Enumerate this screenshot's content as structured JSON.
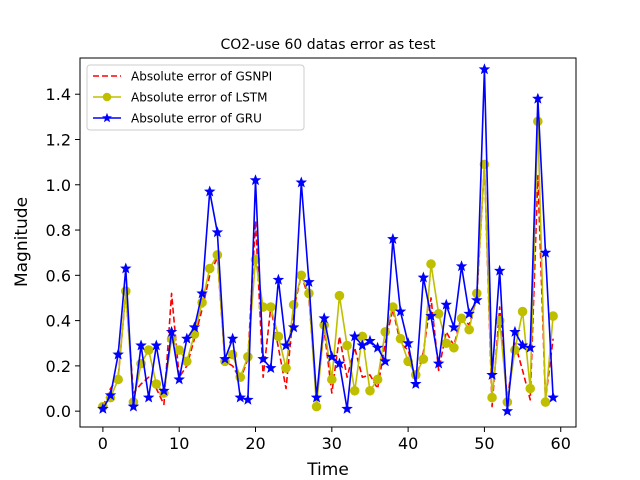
{
  "chart_data": {
    "type": "line",
    "title": "CO2-use 60 datas error as test",
    "xlabel": "Time",
    "ylabel": "Magnitude",
    "xlim": [
      -3,
      62
    ],
    "ylim": [
      -0.07,
      1.56
    ],
    "x_ticks": [
      0,
      10,
      20,
      30,
      40,
      50,
      60
    ],
    "y_ticks": [
      0.0,
      0.2,
      0.4,
      0.6,
      0.8,
      1.0,
      1.2,
      1.4
    ],
    "y_tick_labels": [
      "0.0",
      "0.2",
      "0.4",
      "0.6",
      "0.8",
      "1.0",
      "1.2",
      "1.4"
    ],
    "grid": false,
    "legend_position": "top-left",
    "x": [
      0,
      1,
      2,
      3,
      4,
      5,
      6,
      7,
      8,
      9,
      10,
      11,
      12,
      13,
      14,
      15,
      16,
      17,
      18,
      19,
      20,
      21,
      22,
      23,
      24,
      25,
      26,
      27,
      28,
      29,
      30,
      31,
      32,
      33,
      34,
      35,
      36,
      37,
      38,
      39,
      40,
      41,
      42,
      43,
      44,
      45,
      46,
      47,
      48,
      49,
      50,
      51,
      52,
      53,
      54,
      55,
      56,
      57,
      58,
      59
    ],
    "series": [
      {
        "name": "Absolute error of GSNPI",
        "color": "#ff0000",
        "style": "dashed",
        "marker": "none",
        "values": [
          0.02,
          0.1,
          0.15,
          0.52,
          0.08,
          0.12,
          0.15,
          0.1,
          0.03,
          0.52,
          0.15,
          0.2,
          0.32,
          0.45,
          0.6,
          0.68,
          0.22,
          0.2,
          0.14,
          0.23,
          0.84,
          0.15,
          0.46,
          0.28,
          0.1,
          0.45,
          0.6,
          0.5,
          0.06,
          0.36,
          0.08,
          0.33,
          0.15,
          0.28,
          0.15,
          0.16,
          0.1,
          0.3,
          0.45,
          0.3,
          0.27,
          0.14,
          0.26,
          0.5,
          0.18,
          0.35,
          0.29,
          0.42,
          0.38,
          0.5,
          1.09,
          0.02,
          0.46,
          0.05,
          0.3,
          0.18,
          0.05,
          1.04,
          0.05,
          0.32
        ]
      },
      {
        "name": "Absolute error of LSTM",
        "color": "#bfbf00",
        "style": "solid",
        "marker": "circle",
        "values": [
          0.02,
          0.06,
          0.14,
          0.53,
          0.04,
          0.21,
          0.27,
          0.12,
          0.08,
          0.32,
          0.27,
          0.22,
          0.34,
          0.48,
          0.63,
          0.69,
          0.22,
          0.25,
          0.15,
          0.24,
          0.67,
          0.46,
          0.46,
          0.33,
          0.19,
          0.47,
          0.6,
          0.52,
          0.02,
          0.38,
          0.14,
          0.51,
          0.29,
          0.09,
          0.33,
          0.09,
          0.14,
          0.35,
          0.46,
          0.32,
          0.22,
          0.16,
          0.23,
          0.65,
          0.43,
          0.3,
          0.28,
          0.41,
          0.36,
          0.52,
          1.09,
          0.06,
          0.4,
          0.04,
          0.27,
          0.44,
          0.1,
          1.28,
          0.04,
          0.42
        ]
      },
      {
        "name": "Absolute error of GRU",
        "color": "#0000ff",
        "style": "solid",
        "marker": "star",
        "values": [
          0.01,
          0.07,
          0.25,
          0.63,
          0.02,
          0.29,
          0.06,
          0.29,
          0.09,
          0.35,
          0.14,
          0.32,
          0.37,
          0.52,
          0.97,
          0.79,
          0.23,
          0.32,
          0.06,
          0.05,
          1.02,
          0.23,
          0.19,
          0.58,
          0.29,
          0.37,
          1.01,
          0.57,
          0.06,
          0.41,
          0.24,
          0.21,
          0.01,
          0.33,
          0.29,
          0.31,
          0.28,
          0.22,
          0.76,
          0.44,
          0.3,
          0.12,
          0.59,
          0.42,
          0.21,
          0.47,
          0.37,
          0.64,
          0.43,
          0.49,
          1.51,
          0.16,
          0.62,
          0.0,
          0.35,
          0.29,
          0.28,
          1.38,
          0.7,
          0.06
        ]
      }
    ]
  }
}
